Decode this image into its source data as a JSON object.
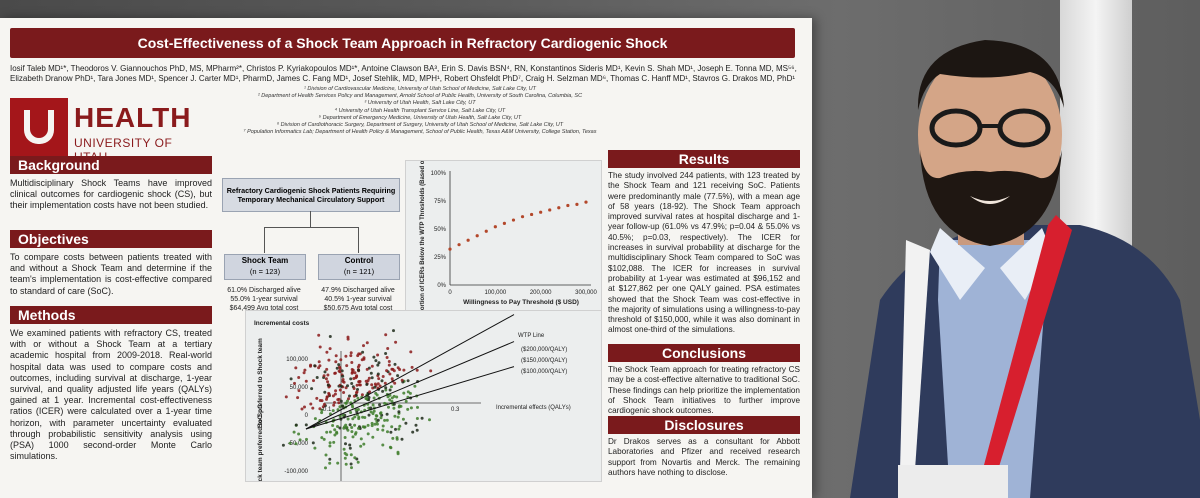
{
  "poster": {
    "title": "Cost-Effectiveness of a Shock Team Approach in Refractory Cardiogenic Shock",
    "authors_line1": "Iosif Taleb MD¹*, Theodoros V. Giannouchos PhD, MS, MPharm²*, Christos P. Kyriakopoulos MD¹*, Antoine Clawson BA³, Erin S. Davis BSN⁴, RN, Konstantinos Sideris MD¹, Kevin S. Shah MD¹, Joseph E. Tonna MD, MS⁵⁶,",
    "authors_line2": "Elizabeth Dranow PhD¹, Tara Jones MD¹, Spencer J. Carter MD¹, PharmD, James C. Fang MD¹, Josef Stehlik, MD, MPH¹, Robert Ohsfeldt PhD⁷, Craig H. Selzman MD⁶, Thomas C. Hanff MD¹, Stavros G. Drakos MD, PhD¹",
    "affiliations": [
      "¹ Division of Cardiovascular Medicine, University of Utah School of Medicine, Salt Lake City, UT",
      "² Department of Health Services Policy and Management, Arnold School of Public Health, University of South Carolina, Columbia, SC",
      "³ University of Utah Health, Salt Lake City, UT",
      "⁴ University of Utah Health Transplant Service Line, Salt Lake City, UT",
      "⁵ Department of Emergency Medicine, University of Utah Health, Salt Lake City, UT",
      "⁶ Division of Cardiothoracic Surgery, Department of Surgery, University of Utah School of Medicine, Salt Lake City, UT",
      "⁷ Population Informatics Lab; Department of Health Policy & Management, School of Public Health, Texas A&M University, College Station, Texas"
    ],
    "logo_health": "HEALTH",
    "logo_univ": "UNIVERSITY OF UTAH",
    "background_head": "Background",
    "background_text": "Multidisciplinary Shock Teams have improved clinical outcomes for cardiogenic shock (CS), but their implementation costs have not been studied.",
    "objectives_head": "Objectives",
    "objectives_text": "To compare costs between patients treated with and without a Shock Team and determine if the team's implementation is cost-effective compared to standard of care (SoC).",
    "methods_head": "Methods",
    "methods_text": "We examined patients with refractory CS, treated with or without a Shock Team at a tertiary academic hospital from 2009-2018. Real-world hospital data was used to compare costs and outcomes, including survival at discharge, 1-year survival, and quality adjusted life years (QALYs) gained at 1 year. Incremental cost-effectiveness ratios (ICER) were calculated over a 1-year time horizon, with parameter uncertainty evaluated through probabilistic sensitivity analysis using (PSA) 1000 second-order Monte Carlo simulations.",
    "flow_top": "Refractory Cardiogenic Shock Patients Requiring Temporary Mechanical Circulatory Support",
    "flow_left_title": "Shock Team",
    "flow_left_n": "(n = 123)",
    "flow_left_stats": [
      "61.0% Discharged alive",
      "55.0% 1-year survival",
      "$64,499 Avg total cost"
    ],
    "flow_right_title": "Control",
    "flow_right_n": "(n = 121)",
    "flow_right_stats": [
      "47.9% Discharged alive",
      "40.5% 1-year survival",
      "$50,675 Avg total cost"
    ],
    "results_head": "Results",
    "results_text": "The study involved 244 patients, with 123 treated by the Shock Team and 121 receiving SoC. Patients were predominantly male (77.5%), with a mean age of 58 years (18-92). The Shock Team approach improved survival rates at hospital discharge and 1-year follow-up (61.0% vs 47.9%; p=0.04 & 55.0% vs 40.5%; p=0.03, respectively). The ICER for increases in survival probability at discharge for the multidisciplinary Shock Team compared to SoC was $102,088. The ICER for increases in survival probability at 1-year was estimated at $96,152 and at $127,862 per one QALY gained. PSA estimates showed that the Shock Team was cost-effective in the majority of simulations using a willingness-to-pay threshold of $150,000, while it was also dominant in almost one-third of the simulations.",
    "conclusions_head": "Conclusions",
    "conclusions_text": "The Shock Team approach for treating refractory CS may be a cost-effective alternative to traditional SoC. These findings can help prioritize the implementation of Shock Team initiatives to further improve cardiogenic shock outcomes.",
    "disclosures_head": "Disclosures",
    "disclosures_text": "Dr Drakos serves as a consultant for Abbott Laboratories and Pfizer and received research support from Novartis and Merck. The remaining authors have nothing to disclose."
  },
  "chart_data": [
    {
      "type": "line",
      "xlabel": "Willingness to Pay Threshold ($ USD)",
      "ylabel": "Proportion of ICERs Below the WTP Thresholds (Based on Probabilistic Sensitivity Analysis Monte Carlo Simulations)",
      "xticks": [
        "0",
        "100,000",
        "200,000",
        "300,000"
      ],
      "yticks": [
        "0%",
        "25%",
        "50%",
        "75%",
        "100%"
      ],
      "xlim": [
        0,
        300000
      ],
      "ylim": [
        0,
        100
      ],
      "x": [
        0,
        20000,
        40000,
        60000,
        80000,
        100000,
        120000,
        140000,
        160000,
        180000,
        200000,
        220000,
        240000,
        260000,
        280000,
        300000
      ],
      "y": [
        32,
        36,
        40,
        44,
        48,
        52,
        55,
        58,
        61,
        63,
        65,
        67,
        69,
        71,
        72,
        74
      ]
    },
    {
      "type": "scatter",
      "ylabel": "Incremental costs",
      "xlabel": "Incremental effects (QALYs)",
      "upper_label": "SoC preferred to Shock team",
      "lower_label": "Shock team preferred to SoC",
      "yticks": [
        "100,000",
        "50,000",
        "0",
        "-50,000",
        "-100,000"
      ],
      "xticks": [
        "-0.1",
        "0.3"
      ],
      "legend_title": "WTP Line",
      "wtp_lines": [
        "($200,000/QALY)",
        "($150,000/QALY)",
        "($100,000/QALY)"
      ],
      "colors": {
        "above": "#8b1a1a",
        "below": "#3e7d2a",
        "dark": "#1e2a1a"
      }
    }
  ]
}
